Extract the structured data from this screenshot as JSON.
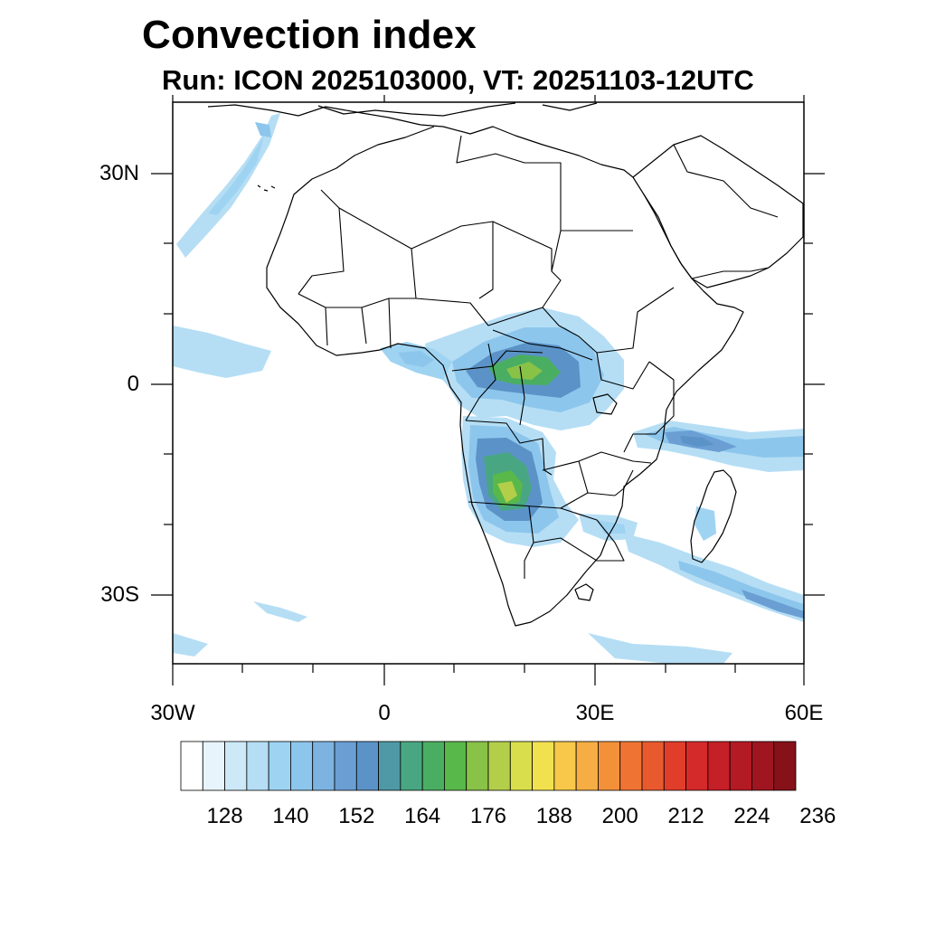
{
  "header": {
    "title": "Convection index",
    "subtitle": "Run: ICON 2025103000,  VT: 20251103-12UTC"
  },
  "map": {
    "region": "Africa",
    "lon_range": [
      -30,
      60
    ],
    "lat_range": [
      -40,
      40
    ],
    "lat_labels": [
      "30N",
      "0",
      "30S"
    ],
    "lon_labels": [
      "30W",
      "0",
      "30E",
      "60E"
    ],
    "field_regions": [
      {
        "name": "central-africa-convection",
        "peak_level": 13
      },
      {
        "name": "angola-zambia-convection",
        "peak_level": 14
      },
      {
        "name": "indian-ocean-band",
        "peak_level": 8
      },
      {
        "name": "madagascar-southeast-band",
        "peak_level": 7
      },
      {
        "name": "north-atlantic-band",
        "peak_level": 5
      },
      {
        "name": "west-african-coast-band",
        "peak_level": 5
      },
      {
        "name": "mozambique-channel-band",
        "peak_level": 4
      },
      {
        "name": "south-atlantic-band",
        "peak_level": 3
      }
    ]
  },
  "colorbar": {
    "colors": [
      "#ffffff",
      "#e8f4fb",
      "#cde9f7",
      "#b5def5",
      "#9fd3f2",
      "#8dc6ec",
      "#7db3e0",
      "#6b9fd4",
      "#5b93c8",
      "#4f99a6",
      "#48a782",
      "#4aae62",
      "#59b84a",
      "#88c247",
      "#b3cf4a",
      "#d9df4c",
      "#f2e14f",
      "#f7c84a",
      "#f6ad43",
      "#f3913b",
      "#ef7434",
      "#e85a2e",
      "#e03e2b",
      "#d42a2a",
      "#c51f27",
      "#b41a24",
      "#9f1620",
      "#861118"
    ],
    "tick_labels": [
      "128",
      "140",
      "152",
      "164",
      "176",
      "188",
      "200",
      "212",
      "224",
      "236"
    ],
    "tick_start_index": 1,
    "tick_step": 3
  }
}
